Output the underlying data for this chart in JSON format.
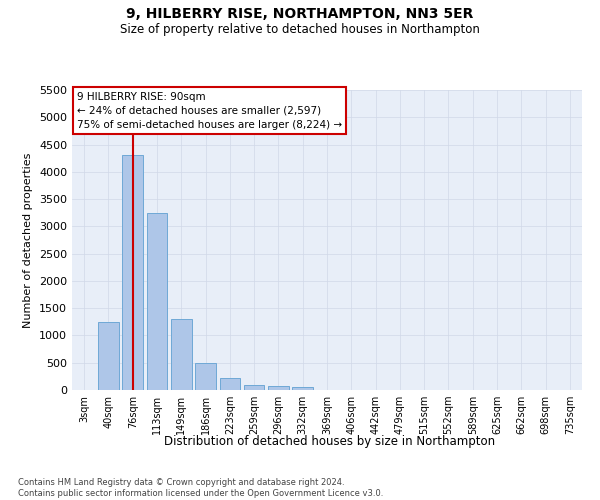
{
  "title": "9, HILBERRY RISE, NORTHAMPTON, NN3 5ER",
  "subtitle": "Size of property relative to detached houses in Northampton",
  "xlabel": "Distribution of detached houses by size in Northampton",
  "ylabel": "Number of detached properties",
  "bar_labels": [
    "3sqm",
    "40sqm",
    "76sqm",
    "113sqm",
    "149sqm",
    "186sqm",
    "223sqm",
    "259sqm",
    "296sqm",
    "332sqm",
    "369sqm",
    "406sqm",
    "442sqm",
    "479sqm",
    "515sqm",
    "552sqm",
    "589sqm",
    "625sqm",
    "662sqm",
    "698sqm",
    "735sqm"
  ],
  "bar_values": [
    0,
    1250,
    4300,
    3250,
    1300,
    500,
    225,
    100,
    75,
    50,
    0,
    0,
    0,
    0,
    0,
    0,
    0,
    0,
    0,
    0,
    0
  ],
  "bar_color": "#aec6e8",
  "bar_edge_color": "#6fa8d6",
  "red_line_index": 2,
  "ylim": [
    0,
    5500
  ],
  "yticks": [
    0,
    500,
    1000,
    1500,
    2000,
    2500,
    3000,
    3500,
    4000,
    4500,
    5000,
    5500
  ],
  "annotation_text": "9 HILBERRY RISE: 90sqm\n← 24% of detached houses are smaller (2,597)\n75% of semi-detached houses are larger (8,224) →",
  "annotation_box_color": "#ffffff",
  "annotation_box_edge_color": "#cc0000",
  "footer_text": "Contains HM Land Registry data © Crown copyright and database right 2024.\nContains public sector information licensed under the Open Government Licence v3.0.",
  "grid_color": "#d0d8e8",
  "background_color": "#e8eef8",
  "title_fontsize": 10,
  "subtitle_fontsize": 8.5,
  "annotation_fontsize": 7.5,
  "ylabel_fontsize": 8,
  "xlabel_fontsize": 8.5,
  "footer_fontsize": 6
}
